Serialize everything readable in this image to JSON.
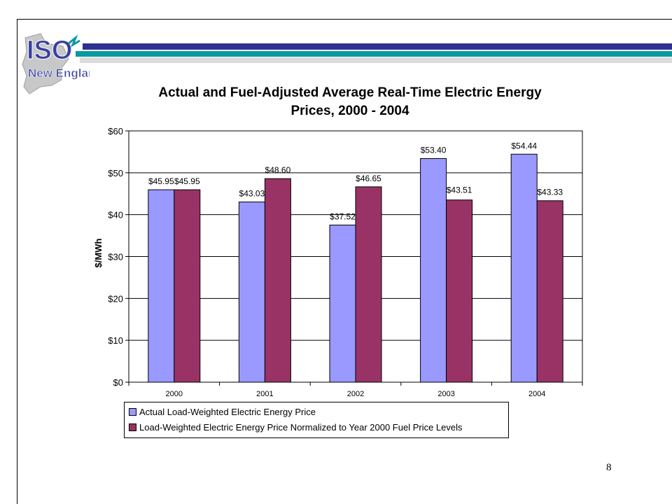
{
  "logo": {
    "text_top": "ISO",
    "text_bottom": "New England"
  },
  "title": {
    "line1": "Actual and Fuel-Adjusted Average Real-Time Electric Energy",
    "line2": "Prices, 2000 - 2004"
  },
  "chart_data": {
    "type": "bar",
    "categories": [
      "2000",
      "2001",
      "2002",
      "2003",
      "2004"
    ],
    "series": [
      {
        "name": "Actual Load-Weighted Electric Energy Price",
        "values": [
          45.95,
          43.03,
          37.52,
          53.4,
          54.44
        ],
        "labels": [
          "$45.95",
          "$43.03",
          "$37.52",
          "$53.40",
          "$54.44"
        ],
        "color": "#9999ff"
      },
      {
        "name": "Load-Weighted Electric Energy Price Normalized to Year 2000 Fuel Price Levels",
        "values": [
          45.95,
          48.6,
          46.65,
          43.51,
          43.33
        ],
        "labels": [
          "$45.95",
          "$48.60",
          "$46.65",
          "$43.51",
          "$43.33"
        ],
        "color": "#993366"
      }
    ],
    "ylabel": "$/MWh",
    "ylim": [
      0,
      60
    ],
    "yticks": [
      0,
      10,
      20,
      30,
      40,
      50,
      60
    ],
    "ytick_labels": [
      "$0",
      "$10",
      "$20",
      "$30",
      "$40",
      "$50",
      "$60"
    ],
    "grid": true,
    "legend": "bottom"
  },
  "page_number": "8"
}
